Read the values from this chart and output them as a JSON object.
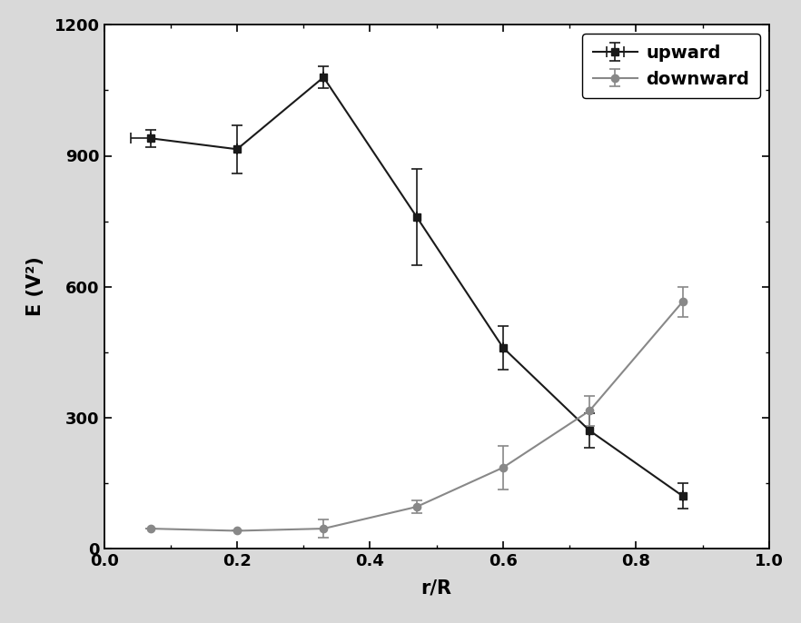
{
  "upward_x": [
    0.07,
    0.2,
    0.33,
    0.47,
    0.6,
    0.73,
    0.87
  ],
  "upward_y": [
    940,
    915,
    1080,
    760,
    460,
    270,
    120
  ],
  "upward_yerr": [
    20,
    55,
    25,
    110,
    50,
    40,
    30
  ],
  "upward_xerr_left": [
    0.03,
    0.0,
    0.0,
    0.0,
    0.0,
    0.0,
    0.0
  ],
  "upward_xerr_right": [
    0.0,
    0.0,
    0.0,
    0.0,
    0.0,
    0.0,
    0.0
  ],
  "downward_x": [
    0.07,
    0.2,
    0.33,
    0.47,
    0.6,
    0.73,
    0.87
  ],
  "downward_y": [
    45,
    40,
    45,
    95,
    185,
    315,
    565
  ],
  "downward_yerr": [
    0,
    0,
    20,
    15,
    50,
    35,
    35
  ],
  "xlabel": "r/R",
  "ylabel": "E (V²)",
  "xlim": [
    0.0,
    1.0
  ],
  "ylim": [
    0,
    1200
  ],
  "yticks": [
    0,
    300,
    600,
    900,
    1200
  ],
  "xticks": [
    0.0,
    0.2,
    0.4,
    0.6,
    0.8,
    1.0
  ],
  "upward_color": "#1a1a1a",
  "downward_color": "#888888",
  "figure_facecolor": "#d9d9d9",
  "axes_facecolor": "#ffffff",
  "legend_upward": "upward",
  "legend_downward": "downward"
}
